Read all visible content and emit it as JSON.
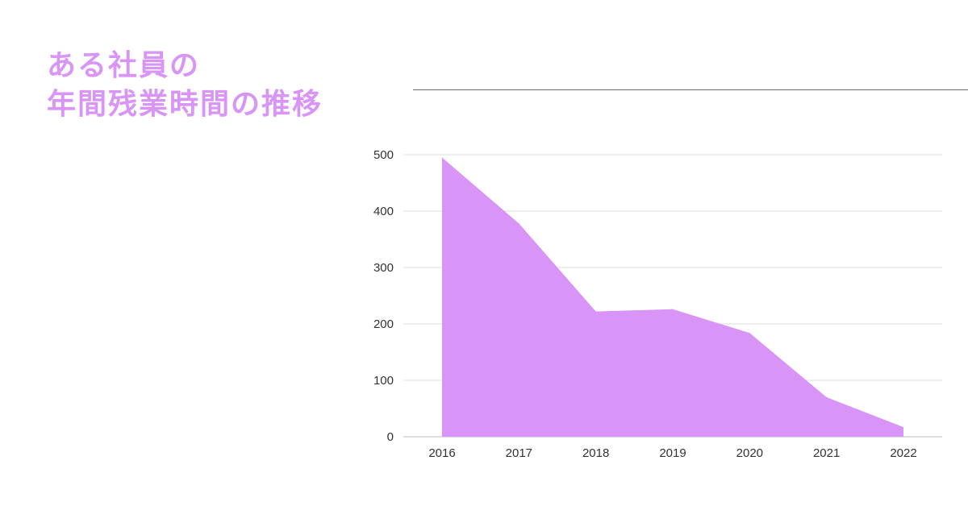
{
  "title": {
    "line1": "ある社員の",
    "line2": "年間残業時間の推移"
  },
  "colors": {
    "title": "#d894f7",
    "area": "#d894f7",
    "grid": "#dddddd",
    "divider": "#6a6a6a",
    "tick_text": "#333333"
  },
  "chart_data": {
    "type": "area",
    "title": "ある社員の年間残業時間の推移",
    "categories": [
      "2016",
      "2017",
      "2018",
      "2019",
      "2020",
      "2021",
      "2022"
    ],
    "series": [
      {
        "values": [
          495,
          378,
          222,
          226,
          184,
          70,
          17
        ]
      }
    ],
    "ylim": [
      0,
      500
    ],
    "yticks": [
      0,
      100,
      200,
      300,
      400,
      500
    ],
    "xlabel": "",
    "ylabel": "",
    "grid": true,
    "legend": "none"
  }
}
